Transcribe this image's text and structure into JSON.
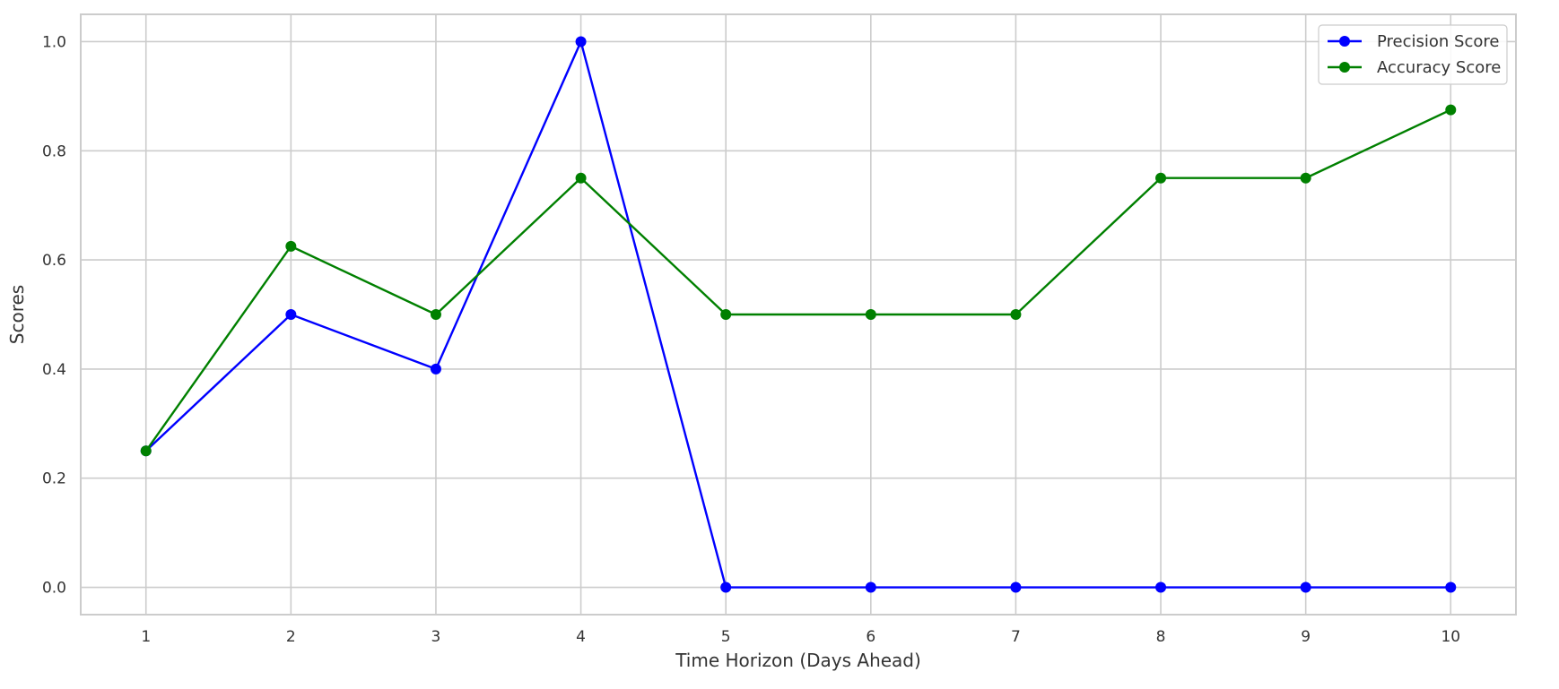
{
  "chart_data": {
    "type": "line",
    "x": [
      1,
      2,
      3,
      4,
      5,
      6,
      7,
      8,
      9,
      10
    ],
    "series": [
      {
        "name": "Precision Score",
        "color": "#0000ff",
        "values": [
          0.25,
          0.5,
          0.4,
          1.0,
          0.0,
          0.0,
          0.0,
          0.0,
          0.0,
          0.0
        ]
      },
      {
        "name": "Accuracy Score",
        "color": "#008000",
        "values": [
          0.25,
          0.625,
          0.5,
          0.75,
          0.5,
          0.5,
          0.5,
          0.75,
          0.75,
          0.875
        ]
      }
    ],
    "xticks": [
      "1",
      "2",
      "3",
      "4",
      "5",
      "6",
      "7",
      "8",
      "9",
      "10"
    ],
    "yticks": [
      "0.0",
      "0.2",
      "0.4",
      "0.6",
      "0.8",
      "1.0"
    ],
    "xlabel": "Time Horizon (Days Ahead)",
    "ylabel": "Scores",
    "xlim": [
      0.55,
      10.45
    ],
    "ylim": [
      -0.05,
      1.05
    ],
    "grid": true,
    "legend_position": "top-right"
  }
}
